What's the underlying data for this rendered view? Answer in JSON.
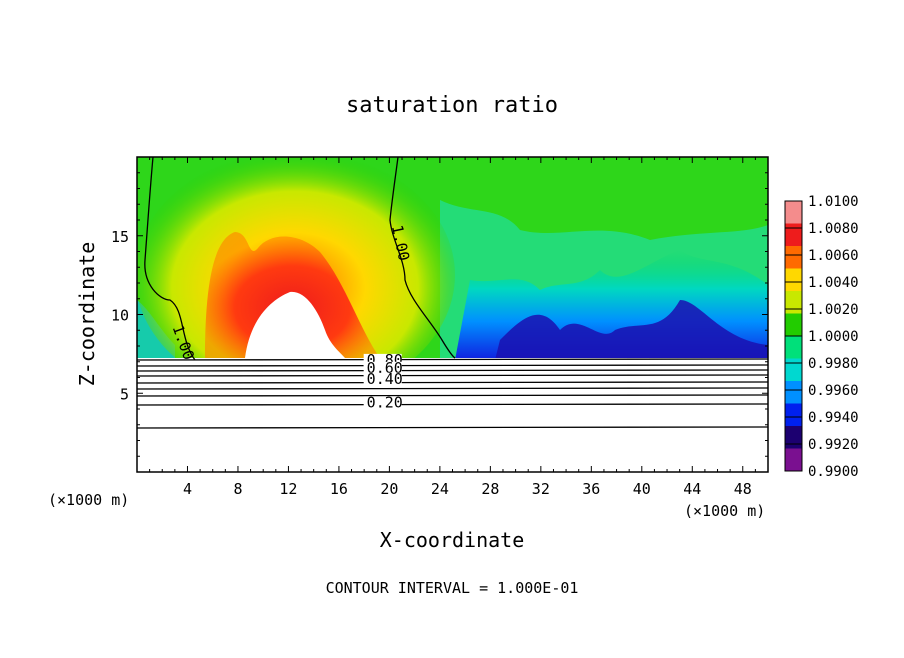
{
  "chart_data": {
    "type": "heatmap",
    "title": "saturation ratio",
    "xlabel": "X-coordinate",
    "ylabel": "Z-coordinate",
    "x_unit_left": "(×1000 m)",
    "x_unit_right": "(×1000 m)",
    "footer": "CONTOUR INTERVAL = 1.000E-01",
    "xlim": [
      0,
      50
    ],
    "ylim": [
      0,
      20
    ],
    "x_ticks": [
      4,
      8,
      12,
      16,
      20,
      24,
      28,
      32,
      36,
      40,
      44,
      48
    ],
    "y_ticks": [
      5,
      10,
      15
    ],
    "colorbar": {
      "levels": [
        "1.0100",
        "1.0080",
        "1.0060",
        "1.0040",
        "1.0020",
        "1.0000",
        "0.9980",
        "0.9960",
        "0.9940",
        "0.9920",
        "0.9900"
      ],
      "colors": [
        "#f48c8c",
        "#ee1c1c",
        "#ff6a00",
        "#ffd800",
        "#c8e800",
        "#22cc00",
        "#00e07a",
        "#00d8d0",
        "#0090ff",
        "#0020ee",
        "#1c0070",
        "#7a1090"
      ]
    },
    "contour_labels": [
      {
        "text": "1.00",
        "x": 2.8,
        "y": 9.2,
        "rotate": 70
      },
      {
        "text": "1.00",
        "x": 20.2,
        "y": 15.6,
        "rotate": 78
      },
      {
        "text": "0.80",
        "x": 18.2,
        "y": 6.8,
        "rotate": 0
      },
      {
        "text": "0.60",
        "x": 18.2,
        "y": 6.3,
        "rotate": 0
      },
      {
        "text": "0.40",
        "x": 18.2,
        "y": 5.6,
        "rotate": 0
      },
      {
        "text": "0.20",
        "x": 18.2,
        "y": 4.1,
        "rotate": 0
      }
    ]
  }
}
